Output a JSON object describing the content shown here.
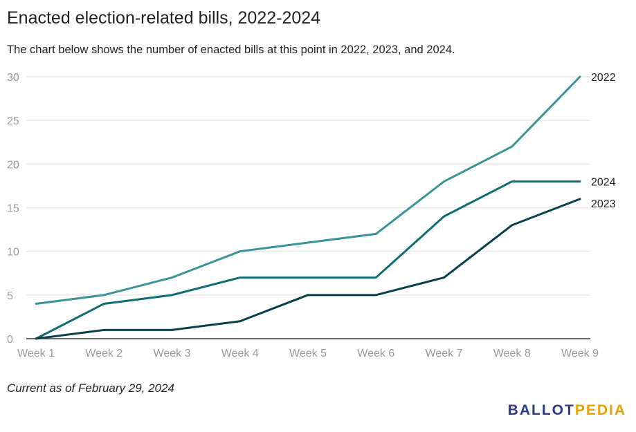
{
  "title": "Enacted election-related bills, 2022-2024",
  "subtitle": "The chart below shows the number of enacted bills at this point in 2022, 2023, and 2024.",
  "footnote": "Current as of February 29, 2024",
  "logo": {
    "part1": "BALLOT",
    "part2": "PEDIA"
  },
  "colors": {
    "2022": "#3a9399",
    "2024": "#0f6b74",
    "2023": "#073f4a",
    "grid": "#e3e3e3",
    "axis": "#333333",
    "tick": "#999999"
  },
  "chart_data": {
    "type": "line",
    "categories": [
      "Week 1",
      "Week 2",
      "Week 3",
      "Week 4",
      "Week 5",
      "Week 6",
      "Week 7",
      "Week 8",
      "Week 9"
    ],
    "yticks": [
      0,
      5,
      10,
      15,
      20,
      25,
      30
    ],
    "ylim": [
      0,
      30
    ],
    "grid": true,
    "legend": "line-end labels",
    "series": [
      {
        "name": "2022",
        "values": [
          4,
          5,
          7,
          10,
          11,
          12,
          18,
          22,
          30
        ]
      },
      {
        "name": "2024",
        "values": [
          0,
          4,
          5,
          7,
          7,
          7,
          14,
          18,
          18
        ]
      },
      {
        "name": "2023",
        "values": [
          0,
          1,
          1,
          2,
          5,
          5,
          7,
          13,
          16
        ]
      }
    ]
  }
}
